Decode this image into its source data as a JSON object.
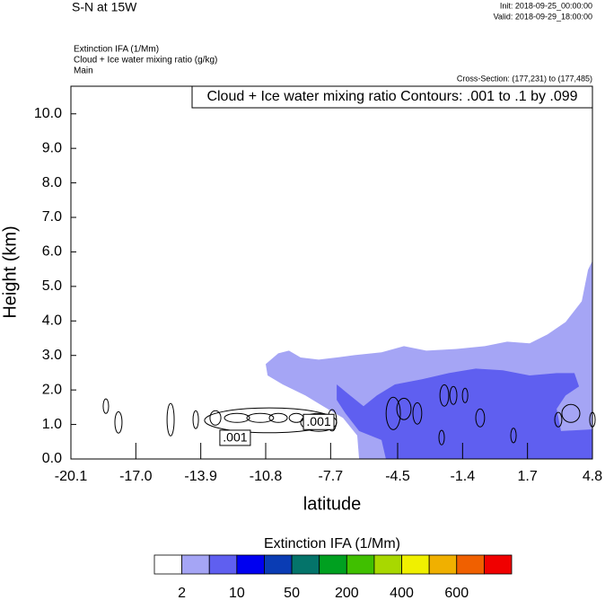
{
  "chart_data": {
    "type": "contour",
    "title": "S-N at 15W",
    "init": "Init: 2018-09-25_00:00:00",
    "valid": "Valid: 2018-09-29_18:00:00",
    "field_lines": [
      "Extinction IFA   (1/Mm)",
      "Cloud + Ice water mixing ratio   (g/kg)",
      "Main"
    ],
    "cross_section": "Cross-Section: (177,231) to (177,485)",
    "contour_legend": "Cloud + Ice water mixing ratio Contours: .001 to .1 by .099",
    "xlabel": "latitude",
    "ylabel": "Height (km)",
    "xlim": [
      -20.1,
      4.8
    ],
    "ylim": [
      0,
      10.8
    ],
    "xticks": [
      -20.1,
      {
        "value": -17,
        "label": "-17.0"
      },
      -13.9,
      -10.8,
      -7.7,
      -4.5,
      -1.4,
      1.7,
      4.8
    ],
    "yticks": [
      {
        "value": 0,
        "label": "0.0"
      },
      {
        "value": 1,
        "label": "1.0"
      },
      {
        "value": 2,
        "label": "2.0"
      },
      {
        "value": 3,
        "label": "3.0"
      },
      {
        "value": 4,
        "label": "4.0"
      },
      {
        "value": 5,
        "label": "5.0"
      },
      {
        "value": 6,
        "label": "6.0"
      },
      {
        "value": 7,
        "label": "7.0"
      },
      {
        "value": 8,
        "label": "8.0"
      },
      {
        "value": 9,
        "label": "9.0"
      },
      {
        "value": 10,
        "label": "10.0"
      }
    ],
    "regions": [
      {
        "color": "#a5a5f5",
        "x": [
          -10.8,
          -10.2,
          -9.69,
          -9.13,
          -8.27,
          -7.41,
          -6.56,
          -5.27,
          -4.2,
          -3.13,
          -1.63,
          -0.34,
          0.73,
          1.8,
          2.66,
          3.52,
          4.29,
          4.59,
          4.8,
          4.8,
          -6.34,
          -6.43,
          -7.11,
          -8.06,
          -8.91,
          -9.99,
          -10.71
        ],
        "y": [
          2.75,
          3.06,
          3.14,
          2.94,
          2.88,
          2.94,
          3.01,
          3.09,
          3.27,
          3.14,
          3.19,
          3.27,
          3.4,
          3.35,
          3.61,
          3.97,
          4.57,
          5.48,
          5.74,
          0,
          0,
          0.68,
          1.19,
          1.53,
          1.84,
          2.16,
          2.42
        ]
      },
      {
        "color": "#5f5ff0",
        "x": [
          -7.41,
          -6.77,
          -6.13,
          -5.49,
          -4.63,
          -3.34,
          -2.06,
          -0.77,
          0.52,
          1.8,
          3.09,
          3.94,
          4.16,
          3.52,
          3.09,
          3.3,
          4.8,
          4.8,
          -5.06,
          -5.27,
          -6.34,
          -6.99,
          -7.41
        ],
        "y": [
          2.16,
          1.84,
          1.53,
          1.84,
          2.16,
          2.31,
          2.49,
          2.62,
          2.57,
          2.42,
          2.49,
          2.49,
          2.1,
          1.84,
          1.45,
          0.81,
          0.86,
          0,
          0,
          0.55,
          0.81,
          1.32,
          1.71
        ]
      }
    ],
    "contours": [
      {
        "x": -18.43,
        "y": 1.53,
        "rx": 0.13,
        "ry": 0.21
      },
      {
        "x": -17.83,
        "y": 1.06,
        "rx": 0.17,
        "ry": 0.31
      },
      {
        "x": -15.34,
        "y": 1.14,
        "rx": 0.17,
        "ry": 0.47
      },
      {
        "x": -14.14,
        "y": 1.14,
        "rx": 0.13,
        "ry": 0.26
      },
      {
        "x": -13.2,
        "y": 1.19,
        "rx": 0.26,
        "ry": 0.21
      },
      {
        "x": -12.17,
        "y": 1.19,
        "rx": 0.6,
        "ry": 0.13
      },
      {
        "x": -11.06,
        "y": 1.19,
        "rx": 0.64,
        "ry": 0.13
      },
      {
        "x": -10.2,
        "y": 1.19,
        "rx": 0.43,
        "ry": 0.13
      },
      {
        "x": -9.34,
        "y": 1.19,
        "rx": 0.34,
        "ry": 0.13
      },
      {
        "x": -8.27,
        "y": 1.06,
        "rx": 0.86,
        "ry": 0.26
      },
      {
        "x": -7.63,
        "y": 1.12,
        "rx": 0.21,
        "ry": 0.31
      },
      {
        "x": -10.63,
        "y": 1.12,
        "rx": 3.09,
        "ry": 0.36
      },
      {
        "x": -4.71,
        "y": 1.32,
        "rx": 0.34,
        "ry": 0.47
      },
      {
        "x": -4.2,
        "y": 1.45,
        "rx": 0.34,
        "ry": 0.31
      },
      {
        "x": -3.56,
        "y": 1.32,
        "rx": 0.21,
        "ry": 0.31
      },
      {
        "x": -2.4,
        "y": 0.62,
        "rx": 0.13,
        "ry": 0.21
      },
      {
        "x": -2.27,
        "y": 1.84,
        "rx": 0.21,
        "ry": 0.31
      },
      {
        "x": -1.84,
        "y": 1.84,
        "rx": 0.17,
        "ry": 0.26
      },
      {
        "x": -1.28,
        "y": 1.84,
        "rx": 0.13,
        "ry": 0.21
      },
      {
        "x": -0.56,
        "y": 1.19,
        "rx": 0.21,
        "ry": 0.26
      },
      {
        "x": 1.03,
        "y": 0.68,
        "rx": 0.13,
        "ry": 0.21
      },
      {
        "x": 3.17,
        "y": 1.14,
        "rx": 0.17,
        "ry": 0.21
      },
      {
        "x": 3.77,
        "y": 1.32,
        "rx": 0.43,
        "ry": 0.26
      },
      {
        "x": 4.8,
        "y": 1.14,
        "rx": 0.13,
        "ry": 0.21
      }
    ],
    "contour_labels": [
      {
        "text": ".001",
        "x": -12.26,
        "y": 0.6
      },
      {
        "text": ".001",
        "x": -8.27,
        "y": 1.06
      }
    ],
    "colorbar": {
      "title": "Extinction IFA  (1/Mm)",
      "colors": [
        "#ffffff",
        "#a5a5f5",
        "#5f5ff0",
        "#0000f0",
        "#0a3cb4",
        "#04746a",
        "#00a020",
        "#40c000",
        "#a8d800",
        "#f0f000",
        "#f0b000",
        "#f06000",
        "#f00000"
      ],
      "ticks": [
        2,
        10,
        50,
        200,
        400,
        600
      ]
    }
  }
}
